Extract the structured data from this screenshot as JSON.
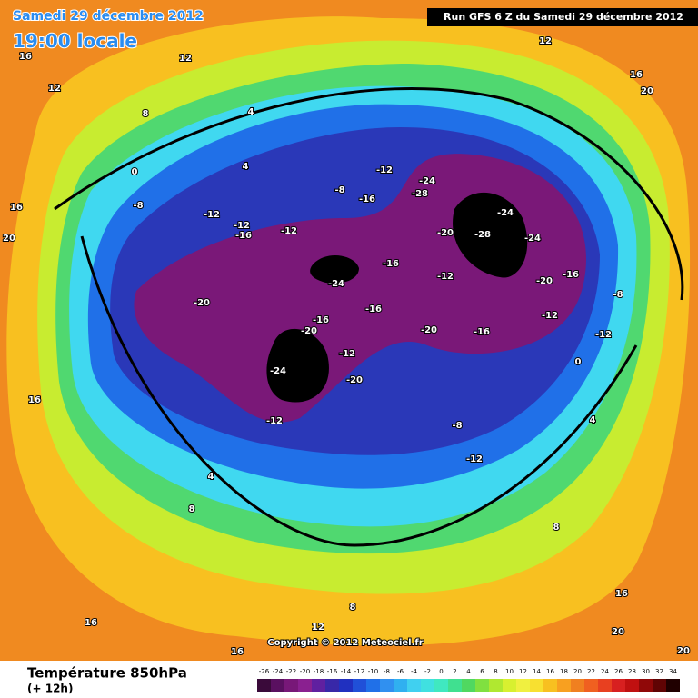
{
  "header": {
    "title": "Samedi 29 décembre 2012",
    "subtitle": "19:00 locale",
    "run": "Run GFS 6 Z du Samedi 29 décembre 2012"
  },
  "map": {
    "copyright": "Copyright © 2012 Meteociel.fr",
    "contour_labels": [
      16,
      12,
      12,
      8,
      4,
      4,
      0,
      -8,
      -12,
      -12,
      -16,
      -12,
      -8,
      -16,
      -12,
      -24,
      -28,
      -20,
      -28,
      -24,
      -24,
      -16,
      -24,
      -12,
      -20,
      -16,
      -16,
      -20,
      -20,
      -16,
      -24,
      -12,
      -20,
      -12,
      -8,
      -12,
      4,
      8,
      16,
      16,
      12,
      8,
      16,
      20,
      12,
      16,
      20,
      -12,
      -8,
      0,
      4,
      8,
      20,
      16,
      16,
      20,
      -20,
      -16,
      -12
    ]
  },
  "legend": {
    "title": "Température 850hPa",
    "subtitle": "(+ 12h)",
    "ticks": [
      -26,
      -24,
      -22,
      -20,
      -18,
      -16,
      -14,
      -12,
      -10,
      -8,
      -6,
      -4,
      -2,
      0,
      2,
      4,
      6,
      8,
      10,
      12,
      14,
      16,
      18,
      20,
      22,
      24,
      26,
      28,
      30,
      32,
      34
    ],
    "colors": [
      "#3a0a3a",
      "#5a1060",
      "#781878",
      "#8a2090",
      "#6020a0",
      "#3828a8",
      "#2030c0",
      "#2050d8",
      "#2070e8",
      "#3090f0",
      "#30b0f0",
      "#40d0f0",
      "#40e0e0",
      "#40e8c0",
      "#40e090",
      "#50d860",
      "#80e040",
      "#b0e830",
      "#d8f030",
      "#f0f040",
      "#f8e030",
      "#f8c020",
      "#f8a020",
      "#f08020",
      "#f06020",
      "#e84020",
      "#d82020",
      "#c01010",
      "#900808",
      "#600404",
      "#200000"
    ]
  }
}
